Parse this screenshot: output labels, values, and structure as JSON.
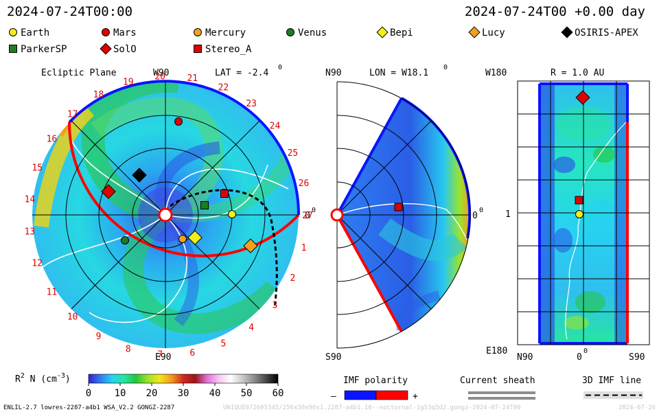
{
  "header": {
    "left_time": "2024-07-24T00:00",
    "right_time": "2024-07-24T00 +0.00 day"
  },
  "legend": [
    {
      "name": "Earth",
      "shape": "circle",
      "color": "#f2ee1a"
    },
    {
      "name": "Mars",
      "shape": "circle",
      "color": "#e00000"
    },
    {
      "name": "Mercury",
      "shape": "circle",
      "color": "#f2a020"
    },
    {
      "name": "Venus",
      "shape": "circle",
      "color": "#1f7d1f"
    },
    {
      "name": "Bepi",
      "shape": "diamond",
      "color": "#f2ee1a"
    },
    {
      "name": "Lucy",
      "shape": "diamond",
      "color": "#f2a020"
    },
    {
      "name": "OSIRIS-APEX",
      "shape": "diamond",
      "color": "#000000"
    },
    {
      "name": "ParkerSP",
      "shape": "square",
      "color": "#1f7d1f"
    },
    {
      "name": "SolO",
      "shape": "diamond",
      "color": "#e00000"
    },
    {
      "name": "Stereo_A",
      "shape": "square",
      "color": "#e00000"
    }
  ],
  "ecliptic": {
    "title": "Ecliptic Plane",
    "top_label": "W90",
    "lat_label": "LAT = -2.4",
    "lat_deg": "0",
    "right_label": "0",
    "right_deg": "0",
    "bottom_label": "E90",
    "carrington": [
      "27",
      "1",
      "2",
      "3",
      "4",
      "5",
      "6",
      "7",
      "8",
      "9",
      "10",
      "11",
      "12",
      "13",
      "14",
      "15",
      "16",
      "17",
      "18",
      "19",
      "20",
      "21",
      "22",
      "23",
      "24",
      "25",
      "26"
    ]
  },
  "meridional": {
    "top_label": "N90",
    "lon_label": "LON = W18.1",
    "lon_deg": "0",
    "right_label": "0",
    "right_deg": "0",
    "bottom_label": "S90"
  },
  "synoptic": {
    "r_label": "R = 1.0 AU",
    "top_left": "W180",
    "mid_left": "1",
    "bottom_left": "E180",
    "x_left": "N90",
    "x_mid": "0",
    "x_mid_deg": "0",
    "x_right": "S90"
  },
  "colorbar": {
    "label_main": "R",
    "label_sup": "2",
    "label_rest": " N (cm",
    "label_sup2": "-3",
    "label_end": ")",
    "ticks": [
      "0",
      "10",
      "20",
      "30",
      "40",
      "50",
      "60"
    ],
    "colors": [
      "#3a1fc8",
      "#2f7ef2",
      "#28d2f0",
      "#26e6a0",
      "#27c43a",
      "#9be42a",
      "#f5e51c",
      "#f29a1c",
      "#d2281f",
      "#9c141a",
      "#e070d8",
      "#f6c8f0",
      "#ffffff",
      "#c8c8c8",
      "#8c8c8c",
      "#464646",
      "#000000"
    ]
  },
  "imf": {
    "title": "IMF polarity",
    "minus": "–",
    "plus": "+",
    "neg_color": "#0a14ff",
    "pos_color": "#ff0000"
  },
  "current_sheath": {
    "title": "Current sheath"
  },
  "imf_line": {
    "title": "3D IMF line"
  },
  "footer": {
    "model": "ENLIL-2.7 lowres-2287-a4b1 WSA_V2.2 GONGZ-2287",
    "run_id": "UNIQUE072605345/256x30x90x1.2287-a4b1.16--nocturnal-1g53q5d2.gongz-2024-07-24T00",
    "date": "2024-07-26"
  }
}
